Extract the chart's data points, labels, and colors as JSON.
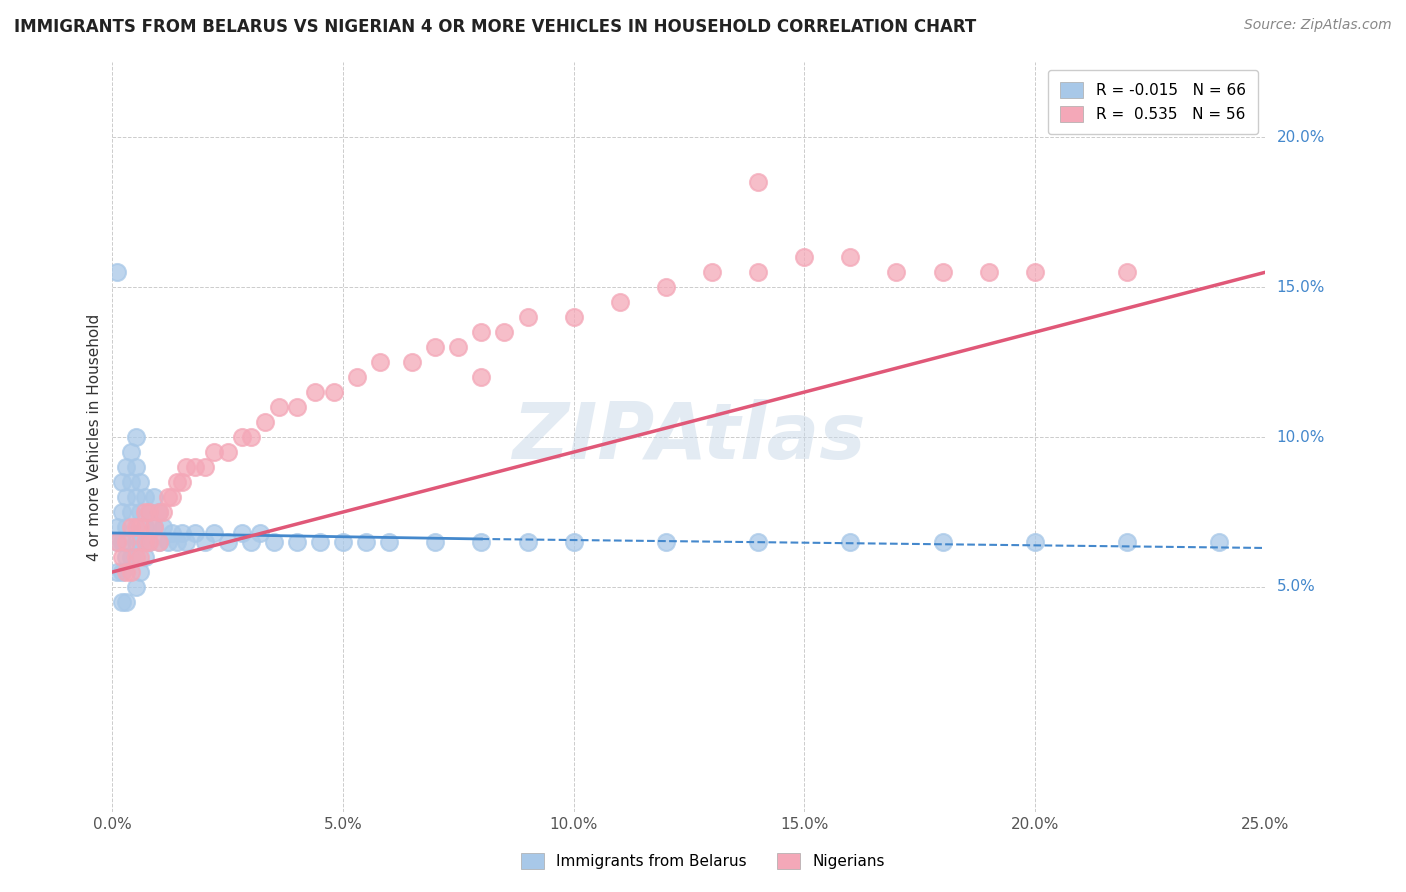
{
  "title": "IMMIGRANTS FROM BELARUS VS NIGERIAN 4 OR MORE VEHICLES IN HOUSEHOLD CORRELATION CHART",
  "source": "Source: ZipAtlas.com",
  "ylabel": "4 or more Vehicles in Household",
  "xlim": [
    0.0,
    0.25
  ],
  "ylim": [
    -0.025,
    0.225
  ],
  "xticks": [
    0.0,
    0.05,
    0.1,
    0.15,
    0.2,
    0.25
  ],
  "xtick_labels": [
    "0.0%",
    "5.0%",
    "10.0%",
    "15.0%",
    "20.0%",
    "25.0%"
  ],
  "yticks": [
    0.05,
    0.1,
    0.15,
    0.2
  ],
  "ytick_labels": [
    "5.0%",
    "10.0%",
    "15.0%",
    "20.0%"
  ],
  "r_belarus": -0.015,
  "n_belarus": 66,
  "r_nigerian": 0.535,
  "n_nigerian": 56,
  "color_belarus": "#a8c8e8",
  "color_nigerian": "#f4a8b8",
  "trendline_color_belarus": "#4488cc",
  "trendline_color_nigerian": "#e05878",
  "watermark": "ZIPAtlas",
  "background_color": "#ffffff",
  "grid_color": "#cccccc",
  "belarus_x": [
    0.001,
    0.001,
    0.001,
    0.002,
    0.002,
    0.002,
    0.002,
    0.002,
    0.003,
    0.003,
    0.003,
    0.003,
    0.003,
    0.004,
    0.004,
    0.004,
    0.004,
    0.005,
    0.005,
    0.005,
    0.005,
    0.005,
    0.006,
    0.006,
    0.006,
    0.006,
    0.007,
    0.007,
    0.007,
    0.008,
    0.008,
    0.009,
    0.009,
    0.01,
    0.01,
    0.011,
    0.012,
    0.013,
    0.014,
    0.015,
    0.016,
    0.018,
    0.02,
    0.022,
    0.025,
    0.028,
    0.03,
    0.032,
    0.035,
    0.04,
    0.045,
    0.05,
    0.055,
    0.06,
    0.07,
    0.08,
    0.09,
    0.1,
    0.12,
    0.14,
    0.16,
    0.18,
    0.2,
    0.22,
    0.001,
    0.24
  ],
  "belarus_y": [
    0.07,
    0.065,
    0.055,
    0.085,
    0.075,
    0.065,
    0.055,
    0.045,
    0.09,
    0.08,
    0.07,
    0.06,
    0.045,
    0.095,
    0.085,
    0.075,
    0.06,
    0.1,
    0.09,
    0.08,
    0.065,
    0.05,
    0.085,
    0.075,
    0.065,
    0.055,
    0.08,
    0.07,
    0.06,
    0.075,
    0.065,
    0.08,
    0.07,
    0.075,
    0.065,
    0.07,
    0.065,
    0.068,
    0.065,
    0.068,
    0.065,
    0.068,
    0.065,
    0.068,
    0.065,
    0.068,
    0.065,
    0.068,
    0.065,
    0.065,
    0.065,
    0.065,
    0.065,
    0.065,
    0.065,
    0.065,
    0.065,
    0.065,
    0.065,
    0.065,
    0.065,
    0.065,
    0.065,
    0.065,
    0.155,
    0.065
  ],
  "nigerian_x": [
    0.001,
    0.002,
    0.003,
    0.003,
    0.004,
    0.004,
    0.005,
    0.005,
    0.006,
    0.006,
    0.007,
    0.007,
    0.008,
    0.008,
    0.009,
    0.01,
    0.01,
    0.011,
    0.012,
    0.013,
    0.014,
    0.015,
    0.016,
    0.018,
    0.02,
    0.022,
    0.025,
    0.028,
    0.03,
    0.033,
    0.036,
    0.04,
    0.044,
    0.048,
    0.053,
    0.058,
    0.065,
    0.07,
    0.075,
    0.08,
    0.085,
    0.09,
    0.1,
    0.11,
    0.12,
    0.13,
    0.14,
    0.15,
    0.16,
    0.17,
    0.18,
    0.19,
    0.2,
    0.22,
    0.14,
    0.08
  ],
  "nigerian_y": [
    0.065,
    0.06,
    0.065,
    0.055,
    0.07,
    0.055,
    0.07,
    0.06,
    0.07,
    0.06,
    0.075,
    0.065,
    0.075,
    0.065,
    0.07,
    0.075,
    0.065,
    0.075,
    0.08,
    0.08,
    0.085,
    0.085,
    0.09,
    0.09,
    0.09,
    0.095,
    0.095,
    0.1,
    0.1,
    0.105,
    0.11,
    0.11,
    0.115,
    0.115,
    0.12,
    0.125,
    0.125,
    0.13,
    0.13,
    0.135,
    0.135,
    0.14,
    0.14,
    0.145,
    0.15,
    0.155,
    0.155,
    0.16,
    0.16,
    0.155,
    0.155,
    0.155,
    0.155,
    0.155,
    0.185,
    0.12
  ],
  "trendline_belarus_x0": 0.0,
  "trendline_belarus_y0": 0.068,
  "trendline_belarus_x1": 0.25,
  "trendline_belarus_y1": 0.063,
  "trendline_nigerian_x0": 0.0,
  "trendline_nigerian_y0": 0.055,
  "trendline_nigerian_x1": 0.25,
  "trendline_nigerian_y1": 0.155
}
